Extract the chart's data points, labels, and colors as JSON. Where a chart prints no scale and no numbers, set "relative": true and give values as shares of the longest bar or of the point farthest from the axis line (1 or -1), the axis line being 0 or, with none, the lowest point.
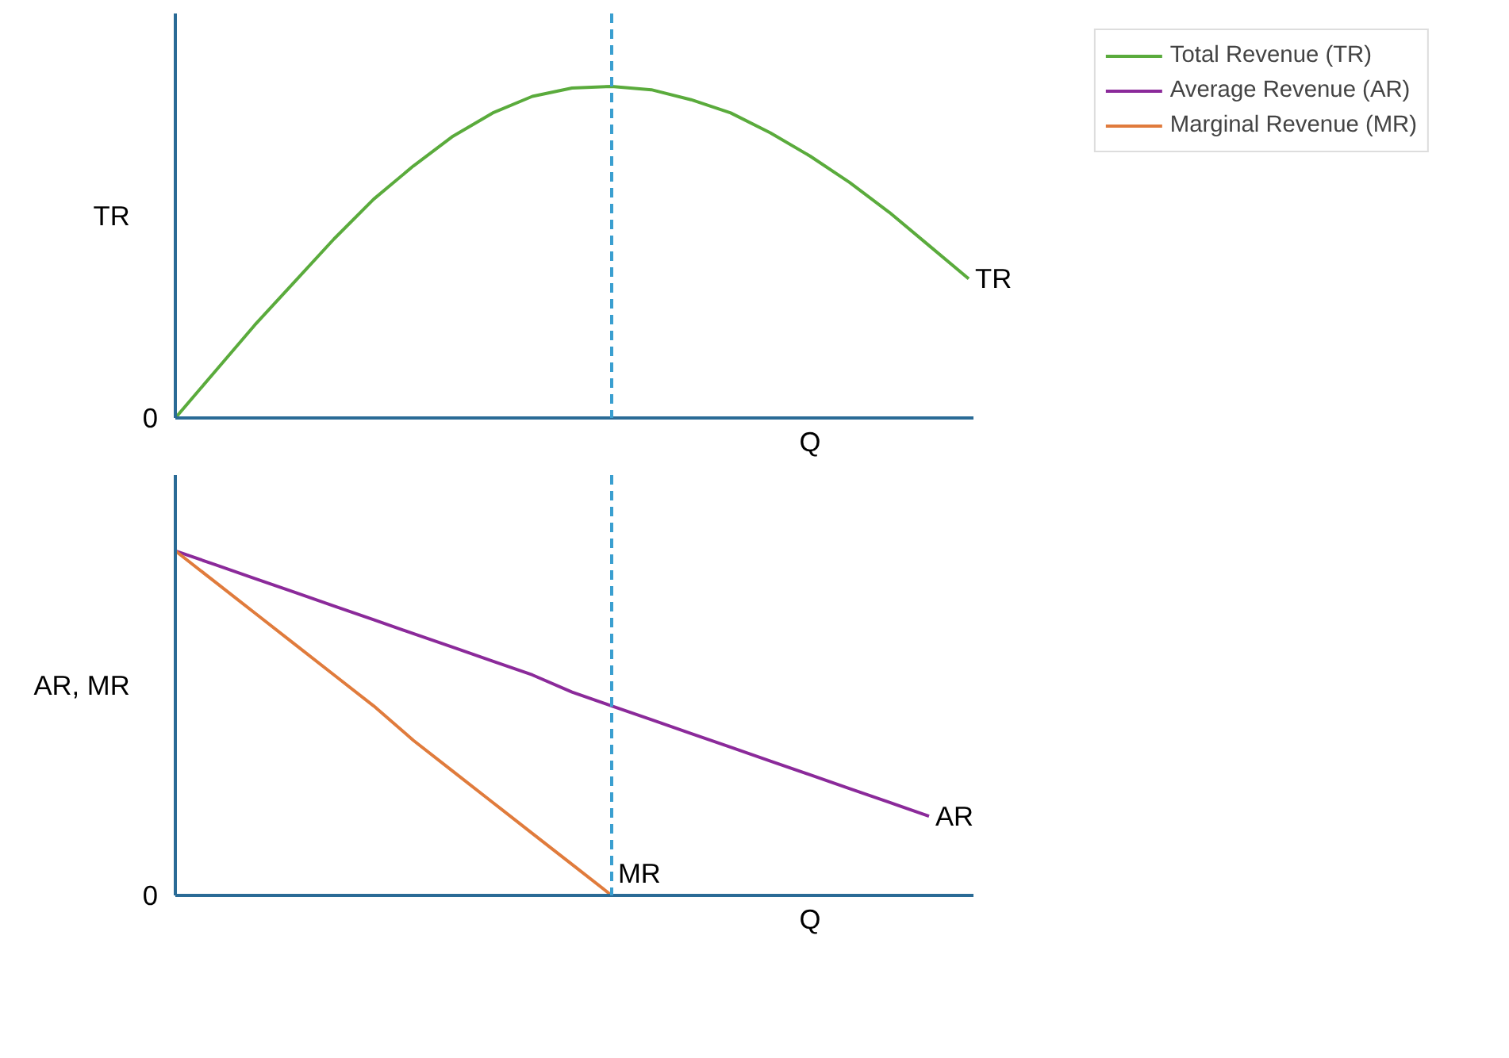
{
  "chart_data": [
    {
      "type": "line",
      "relative": true,
      "ylabel": "TR",
      "xlabel": "Q",
      "legend": "top right",
      "categories": [
        null,
        null,
        null,
        null,
        null,
        null,
        null,
        null,
        null,
        null,
        null,
        null,
        null,
        null,
        null,
        null,
        null,
        null,
        null,
        null,
        null
      ],
      "series": [
        {
          "name": "Total Revenue (TR)",
          "color": "#5aab3c",
          "values": [
            0,
            0.14,
            0.28,
            0.41,
            0.54,
            0.66,
            0.76,
            0.85,
            0.92,
            0.97,
            0.995,
            1,
            0.99,
            0.96,
            0.92,
            0.86,
            0.79,
            0.71,
            0.62,
            0.52,
            0.42
          ]
        }
      ],
      "annotations": [
        "0",
        "TR"
      ]
    },
    {
      "type": "line",
      "relative": true,
      "ylabel": "AR, MR",
      "xlabel": "Q",
      "legend": "top right",
      "categories": [
        null,
        null,
        null,
        null,
        null,
        null,
        null,
        null,
        null,
        null,
        null,
        null,
        null,
        null,
        null,
        null,
        null,
        null,
        null,
        null,
        null
      ],
      "series": [
        {
          "name": "Average Revenue (AR)",
          "color": "#8b2a9a",
          "values": [
            1,
            0.96,
            0.92,
            0.88,
            0.84,
            0.8,
            0.76,
            0.72,
            0.68,
            0.64,
            0.59,
            0.55,
            0.51,
            0.47,
            0.43,
            0.39,
            0.35,
            0.31,
            0.27,
            0.23,
            null
          ]
        },
        {
          "name": "Marginal Revenue (MR)",
          "color": "#e07b3c",
          "values": [
            1,
            0.91,
            0.82,
            0.73,
            0.64,
            0.55,
            0.45,
            0.36,
            0.27,
            0.18,
            0.09,
            0,
            null,
            null,
            null,
            null,
            null,
            null,
            null,
            null,
            null
          ]
        }
      ],
      "annotations": [
        "0",
        "AR",
        "MR"
      ]
    }
  ]
}
